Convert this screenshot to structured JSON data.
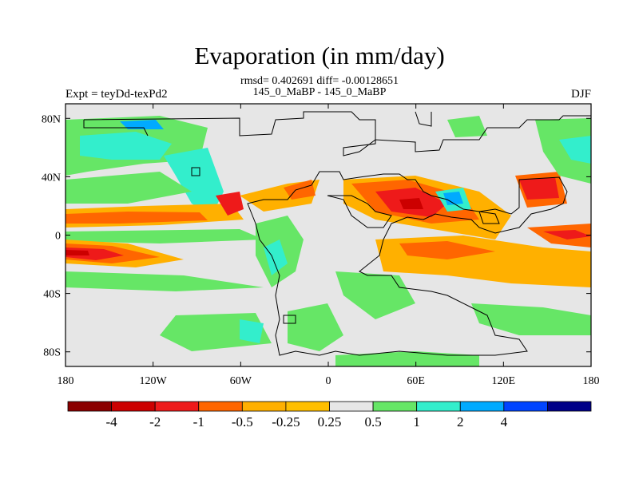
{
  "title": "Evaporation (in mm/day)",
  "stats_line": "rmsd= 0.402691 diff= -0.00128651",
  "comparison_line": "145_0_MaBP - 145_0_MaBP",
  "experiment_label": "Expt = teyDd-texPd2",
  "season_label": "DJF",
  "axes": {
    "lat_ticks": [
      {
        "value": 80,
        "label": "80N"
      },
      {
        "value": 40,
        "label": "40N"
      },
      {
        "value": 0,
        "label": "0"
      },
      {
        "value": -40,
        "label": "40S"
      },
      {
        "value": -80,
        "label": "80S"
      }
    ],
    "lon_ticks": [
      {
        "value": -180,
        "label": "180"
      },
      {
        "value": -120,
        "label": "120W"
      },
      {
        "value": -60,
        "label": "60W"
      },
      {
        "value": 0,
        "label": "0"
      },
      {
        "value": 60,
        "label": "60E"
      },
      {
        "value": 120,
        "label": "120E"
      },
      {
        "value": 180,
        "label": "180"
      }
    ],
    "lon_range": [
      -180,
      180
    ],
    "lat_range": [
      -90,
      90
    ]
  },
  "colorbar": {
    "colors": [
      "#8b0000",
      "#cc0000",
      "#ee1a1a",
      "#ff6600",
      "#ffb000",
      "#ffbf00",
      "#e6e6e6",
      "#66e666",
      "#33eecc",
      "#00aaff",
      "#0044ff",
      "#000088"
    ],
    "labels": [
      "-4",
      "-2",
      "-1",
      "-0.5",
      "-0.25",
      "0.25",
      "0.5",
      "1",
      "2",
      "4"
    ]
  },
  "colors": {
    "background_field": "#e6e6e6",
    "coastline": "#000000"
  }
}
